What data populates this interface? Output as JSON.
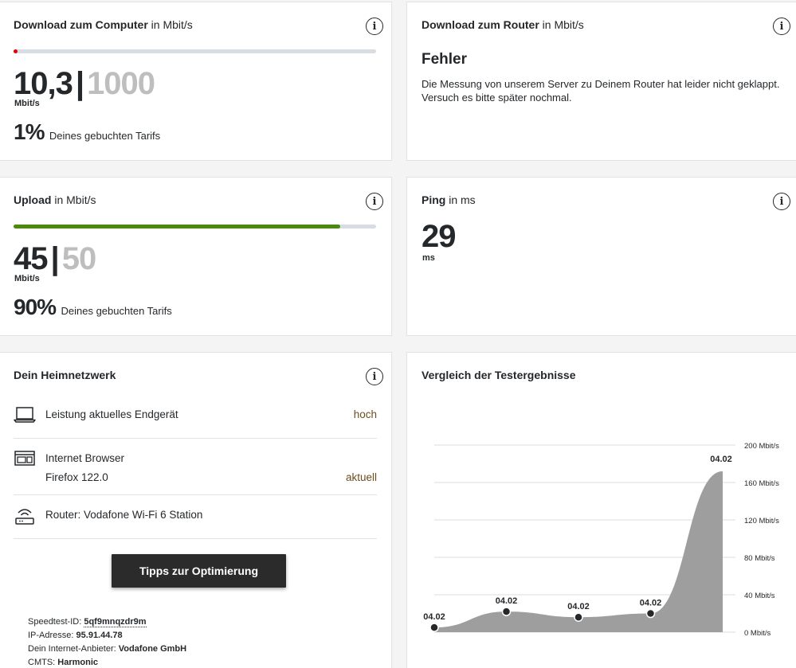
{
  "download_computer": {
    "title_bold": "Download zum Computer",
    "title_unit": "in Mbit/s",
    "value": "10,3",
    "separator": "|",
    "max": "1000",
    "unit": "Mbit/s",
    "percent": "1%",
    "percent_text": "Deines gebuchten Tarifs",
    "fill_fraction": 0.0103,
    "bar_color": "#e60000"
  },
  "download_router": {
    "title_bold": "Download zum Router",
    "title_unit": "in Mbit/s",
    "error_title": "Fehler",
    "error_text": "Die Messung von unserem Server zu Deinem Router hat leider nicht geklappt. Versuch es bitte später nochmal."
  },
  "upload": {
    "title_bold": "Upload",
    "title_unit": "in Mbit/s",
    "value": "45",
    "separator": "|",
    "max": "50",
    "unit": "Mbit/s",
    "percent": "90%",
    "percent_text": "Deines gebuchten Tarifs",
    "fill_fraction": 0.9,
    "bar_color": "#4b8a0c"
  },
  "ping": {
    "title_bold": "Ping",
    "title_unit": "in ms",
    "value": "29",
    "unit": "ms"
  },
  "home_network": {
    "title": "Dein Heimnetzwerk",
    "rows": [
      {
        "icon": "laptop-icon",
        "label": "Leistung aktuelles Endgerät",
        "value": "hoch"
      },
      {
        "icon": "browser-icon",
        "label": "Internet Browser",
        "sublabel": "Firefox 122.0",
        "value": "aktuell"
      },
      {
        "icon": "router-icon",
        "label": "Router: Vodafone Wi-Fi 6 Station",
        "value": ""
      }
    ],
    "button_label": "Tipps zur Optimierung",
    "meta": {
      "speedtest_label": "Speedtest-ID:",
      "speedtest_id": "5qf9mnqzdr9m",
      "ip_label": "IP-Adresse:",
      "ip": "95.91.44.78",
      "provider_label": "Dein Internet-Anbieter:",
      "provider": "Vodafone GmbH",
      "cmts_label": "CMTS:",
      "cmts": "Harmonic"
    }
  },
  "comparison": {
    "title": "Vergleich der Testergebnisse"
  },
  "chart_data": {
    "type": "area",
    "title": "Vergleich der Testergebnisse",
    "x": [
      "04.02",
      "04.02",
      "04.02",
      "04.02",
      "04.02"
    ],
    "series": [
      {
        "values": [
          5,
          22,
          16,
          20,
          172
        ]
      }
    ],
    "y_ticks": [
      "0 Mbit/s",
      "40 Mbit/s",
      "80 Mbit/s",
      "120 Mbit/s",
      "160 Mbit/s",
      "200 Mbit/s"
    ],
    "ylim": [
      0,
      200
    ],
    "grid": true,
    "fill_color": "#9e9e9e"
  }
}
